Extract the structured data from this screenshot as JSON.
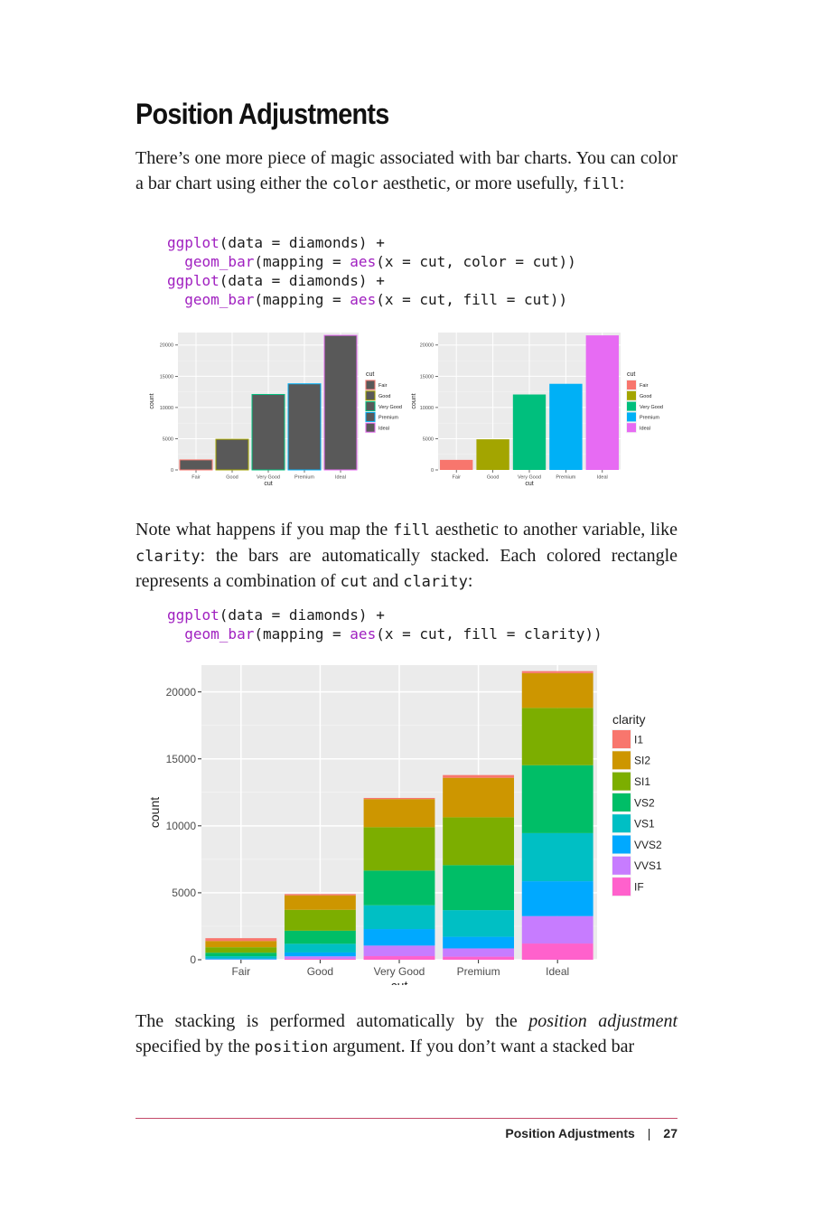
{
  "section": {
    "title": "Position Adjustments"
  },
  "paragraphs": {
    "p1": {
      "a": "There’s one more piece of magic associated with bar charts. You can color a bar chart using either the ",
      "b": "color",
      "c": " aesthetic, or more usefully, ",
      "d": "fill",
      "e": ":"
    },
    "p2": {
      "a": "Note what happens if you map the ",
      "b": "fill",
      "c": " aesthetic to another variable, like ",
      "d": "clarity",
      "e": ": the bars are automatically stacked. Each colored rectangle represents a combination of ",
      "f": "cut",
      "g": " and ",
      "h": "clarity",
      "i": ":"
    },
    "p3": {
      "a": "The stacking is performed automatically by the ",
      "b": "position adjustment",
      "c": " specified by the ",
      "d": "position",
      "e": " argument. If you don’t want a stacked bar"
    }
  },
  "code1": {
    "l1": [
      "ggplot",
      "(data = diamonds) +"
    ],
    "l2": [
      "geom_bar",
      "(mapping = ",
      "aes",
      "(x = cut, color = cut))"
    ],
    "l3": [
      "ggplot",
      "(data = diamonds) +"
    ],
    "l4": [
      "geom_bar",
      "(mapping = ",
      "aes",
      "(x = cut, fill = cut))"
    ]
  },
  "code2": {
    "l1": [
      "ggplot",
      "(data = diamonds) +"
    ],
    "l2": [
      "geom_bar",
      "(mapping = ",
      "aes",
      "(x = cut, fill = clarity))"
    ]
  },
  "colors": {
    "panel": "#ebebeb",
    "grid": "#ffffff",
    "cut": [
      "#F8766D",
      "#A3A500",
      "#00BF7D",
      "#00B0F6",
      "#E76BF3"
    ],
    "clarity": [
      "#F8766D",
      "#CD9600",
      "#7CAE00",
      "#00BE67",
      "#00BFC4",
      "#00A9FF",
      "#C77CFF",
      "#FF61CC"
    ]
  },
  "chart_data": [
    {
      "type": "bar",
      "categories": [
        "Fair",
        "Good",
        "Very Good",
        "Premium",
        "Ideal"
      ],
      "values": [
        1610,
        4906,
        12082,
        13791,
        21551
      ],
      "xlabel": "cut",
      "ylabel": "count",
      "ylim": [
        0,
        22000
      ],
      "yticks": [
        0,
        5000,
        10000,
        15000,
        20000
      ],
      "legend": {
        "title": "cut",
        "entries": [
          "Fair",
          "Good",
          "Very Good",
          "Premium",
          "Ideal"
        ],
        "placement": "right"
      },
      "style": "outline color = cut, dark grey fill"
    },
    {
      "type": "bar",
      "categories": [
        "Fair",
        "Good",
        "Very Good",
        "Premium",
        "Ideal"
      ],
      "values": [
        1610,
        4906,
        12082,
        13791,
        21551
      ],
      "xlabel": "cut",
      "ylabel": "count",
      "ylim": [
        0,
        22000
      ],
      "yticks": [
        0,
        5000,
        10000,
        15000,
        20000
      ],
      "legend": {
        "title": "cut",
        "entries": [
          "Fair",
          "Good",
          "Very Good",
          "Premium",
          "Ideal"
        ],
        "placement": "right"
      },
      "style": "fill = cut"
    },
    {
      "type": "bar",
      "stacked": true,
      "categories": [
        "Fair",
        "Good",
        "Very Good",
        "Premium",
        "Ideal"
      ],
      "xlabel": "cut",
      "ylabel": "count",
      "ylim": [
        0,
        22000
      ],
      "yticks": [
        0,
        5000,
        10000,
        15000,
        20000
      ],
      "legend": {
        "title": "clarity",
        "placement": "right"
      },
      "series": [
        {
          "name": "I1",
          "values": [
            210,
            96,
            84,
            205,
            146
          ]
        },
        {
          "name": "SI2",
          "values": [
            466,
            1081,
            2100,
            2949,
            2598
          ]
        },
        {
          "name": "SI1",
          "values": [
            408,
            1560,
            3240,
            3575,
            4282
          ]
        },
        {
          "name": "VS2",
          "values": [
            261,
            978,
            2591,
            3357,
            5071
          ]
        },
        {
          "name": "VS1",
          "values": [
            170,
            648,
            1775,
            1989,
            3589
          ]
        },
        {
          "name": "VVS2",
          "values": [
            69,
            286,
            1235,
            870,
            2606
          ]
        },
        {
          "name": "VVS1",
          "values": [
            17,
            186,
            789,
            616,
            2047
          ]
        },
        {
          "name": "IF",
          "values": [
            9,
            71,
            268,
            230,
            1212
          ]
        }
      ]
    }
  ],
  "footer": {
    "section": "Position Adjustments",
    "page": "27"
  }
}
